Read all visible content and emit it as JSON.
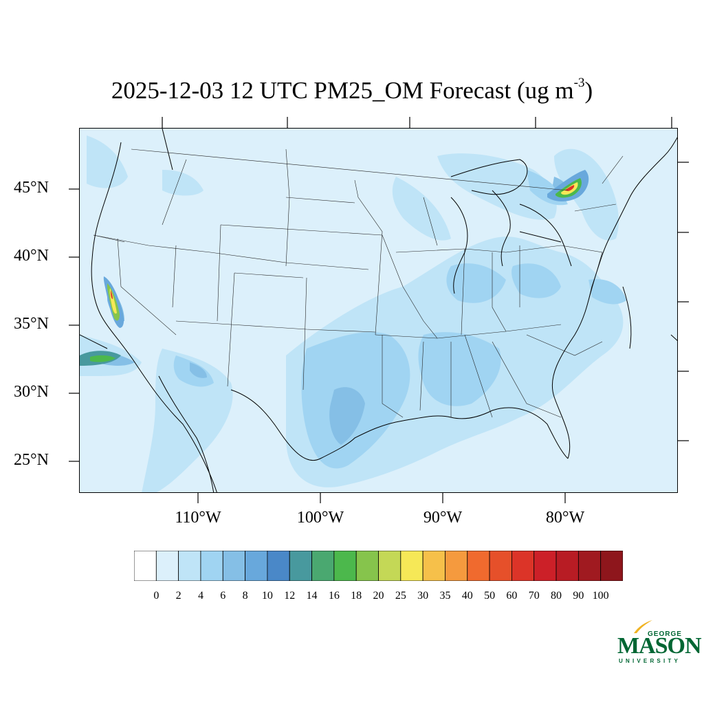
{
  "title": {
    "main": "2025-12-03 12 UTC PM25_OM Forecast (ug m",
    "superscript": "-3",
    "close": ")"
  },
  "map": {
    "lat_labels": [
      "45°N",
      "40°N",
      "35°N",
      "30°N",
      "25°N"
    ],
    "lon_labels": [
      "110°W",
      "100°W",
      "90°W",
      "80°W"
    ],
    "background_color": "#dcf0fb"
  },
  "colorbar": {
    "labels": [
      "0",
      "2",
      "4",
      "6",
      "8",
      "10",
      "12",
      "14",
      "16",
      "18",
      "20",
      "25",
      "30",
      "35",
      "40",
      "50",
      "60",
      "70",
      "80",
      "90",
      "100"
    ],
    "colors": [
      "#ffffff",
      "#dcf0fb",
      "#bfe4f7",
      "#a0d4f2",
      "#85bfe6",
      "#68a8dc",
      "#4a88c8",
      "#48999e",
      "#4aa870",
      "#4cb84c",
      "#86c44c",
      "#c4d856",
      "#f6e857",
      "#f6c04a",
      "#f59a3e",
      "#f06a2e",
      "#e6502a",
      "#dc3428",
      "#cc2028",
      "#b81c24",
      "#a01a20",
      "#8e161c"
    ]
  },
  "logo": {
    "top_text": "GEORGE",
    "name": "MASON",
    "bottom_text": "UNIVERSITY",
    "color": "#006633",
    "accent": "#f0b323"
  }
}
